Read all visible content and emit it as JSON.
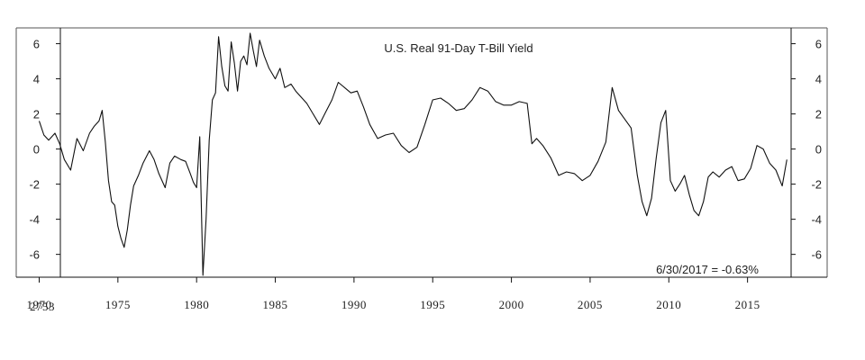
{
  "chart_data": {
    "type": "line",
    "title": "U.S. Real 91-Day T-Bill Yield",
    "annotation": "6/30/2017 = -0.63%",
    "corner_label": "2753",
    "xlabel": "",
    "ylabel": "",
    "xlim": [
      1969.8,
      2019.2
    ],
    "ylim": [
      -7.3,
      6.9
    ],
    "yticks": [
      6,
      4,
      2,
      0,
      -2,
      -4,
      -6
    ],
    "ytick_labels": [
      "6",
      "4",
      "2",
      "0",
      "-2",
      "-4",
      "-6"
    ],
    "xticks": [
      1970,
      1975,
      1980,
      1985,
      1990,
      1995,
      2000,
      2005,
      2010,
      2015
    ],
    "xtick_labels": [
      "1970",
      "1975",
      "1980",
      "1985",
      "1990",
      "1995",
      "2000",
      "2005",
      "2010",
      "2015"
    ],
    "grid": false,
    "series": [
      {
        "x": [
          1970.0,
          1970.3,
          1970.6,
          1971.0,
          1971.3,
          1971.6,
          1972.0,
          1972.4,
          1972.8,
          1973.2,
          1973.5,
          1973.8,
          1974.0,
          1974.2,
          1974.4,
          1974.6,
          1974.8,
          1975.0,
          1975.2,
          1975.4,
          1975.6,
          1975.8,
          1976.0,
          1976.3,
          1976.6,
          1977.0,
          1977.3,
          1977.6,
          1978.0,
          1978.3,
          1978.6,
          1979.0,
          1979.3,
          1979.6,
          1979.8,
          1980.0,
          1980.2,
          1980.4,
          1980.6,
          1980.8,
          1981.0,
          1981.2,
          1981.4,
          1981.6,
          1981.8,
          1982.0,
          1982.2,
          1982.4,
          1982.6,
          1982.8,
          1983.0,
          1983.2,
          1983.4,
          1983.6,
          1983.8,
          1984.0,
          1984.3,
          1984.6,
          1985.0,
          1985.3,
          1985.6,
          1986.0,
          1986.3,
          1986.6,
          1987.0,
          1987.4,
          1987.8,
          1988.2,
          1988.6,
          1989.0,
          1989.4,
          1989.8,
          1990.2,
          1990.6,
          1991.0,
          1991.5,
          1992.0,
          1992.5,
          1993.0,
          1993.5,
          1994.0,
          1994.5,
          1995.0,
          1995.5,
          1996.0,
          1996.5,
          1997.0,
          1997.5,
          1998.0,
          1998.5,
          1999.0,
          1999.5,
          2000.0,
          2000.5,
          2001.0,
          2001.3,
          2001.6,
          2002.0,
          2002.5,
          2003.0,
          2003.5,
          2004.0,
          2004.5,
          2005.0,
          2005.5,
          2006.0,
          2006.4,
          2006.8,
          2007.2,
          2007.6,
          2008.0,
          2008.3,
          2008.6,
          2008.9,
          2009.2,
          2009.5,
          2009.8,
          2010.1,
          2010.4,
          2010.7,
          2011.0,
          2011.3,
          2011.6,
          2011.9,
          2012.2,
          2012.5,
          2012.8,
          2013.2,
          2013.6,
          2014.0,
          2014.4,
          2014.8,
          2015.2,
          2015.6,
          2016.0,
          2016.4,
          2016.8,
          2017.2,
          2017.5
        ],
        "y": [
          1.6,
          0.8,
          0.5,
          0.9,
          0.3,
          -0.6,
          -1.2,
          0.6,
          -0.1,
          0.9,
          1.3,
          1.6,
          2.2,
          0.4,
          -1.8,
          -3.0,
          -3.2,
          -4.4,
          -5.1,
          -5.6,
          -4.6,
          -3.2,
          -2.1,
          -1.5,
          -0.8,
          -0.1,
          -0.6,
          -1.4,
          -2.2,
          -0.8,
          -0.4,
          -0.6,
          -0.7,
          -1.4,
          -1.9,
          -2.2,
          0.7,
          -7.2,
          -4.0,
          0.5,
          2.8,
          3.2,
          6.4,
          4.7,
          3.6,
          3.3,
          6.1,
          4.9,
          3.3,
          5.0,
          5.3,
          4.8,
          6.6,
          5.6,
          4.7,
          6.2,
          5.3,
          4.6,
          4.0,
          4.6,
          3.5,
          3.7,
          3.3,
          3.0,
          2.6,
          2.0,
          1.4,
          2.1,
          2.8,
          3.8,
          3.5,
          3.2,
          3.3,
          2.4,
          1.4,
          0.6,
          0.8,
          0.9,
          0.2,
          -0.2,
          0.1,
          1.4,
          2.8,
          2.9,
          2.6,
          2.2,
          2.3,
          2.8,
          3.5,
          3.3,
          2.7,
          2.5,
          2.5,
          2.7,
          2.6,
          0.3,
          0.6,
          0.2,
          -0.5,
          -1.5,
          -1.3,
          -1.4,
          -1.8,
          -1.5,
          -0.7,
          0.4,
          3.5,
          2.2,
          1.7,
          1.2,
          -1.5,
          -3.0,
          -3.8,
          -2.8,
          -0.5,
          1.5,
          2.2,
          -1.8,
          -2.4,
          -2.0,
          -1.5,
          -2.6,
          -3.5,
          -3.8,
          -3.0,
          -1.6,
          -1.3,
          -1.6,
          -1.2,
          -1.0,
          -1.8,
          -1.7,
          -1.1,
          0.2,
          0.0,
          -0.8,
          -1.2,
          -2.1,
          -0.6
        ]
      }
    ]
  }
}
